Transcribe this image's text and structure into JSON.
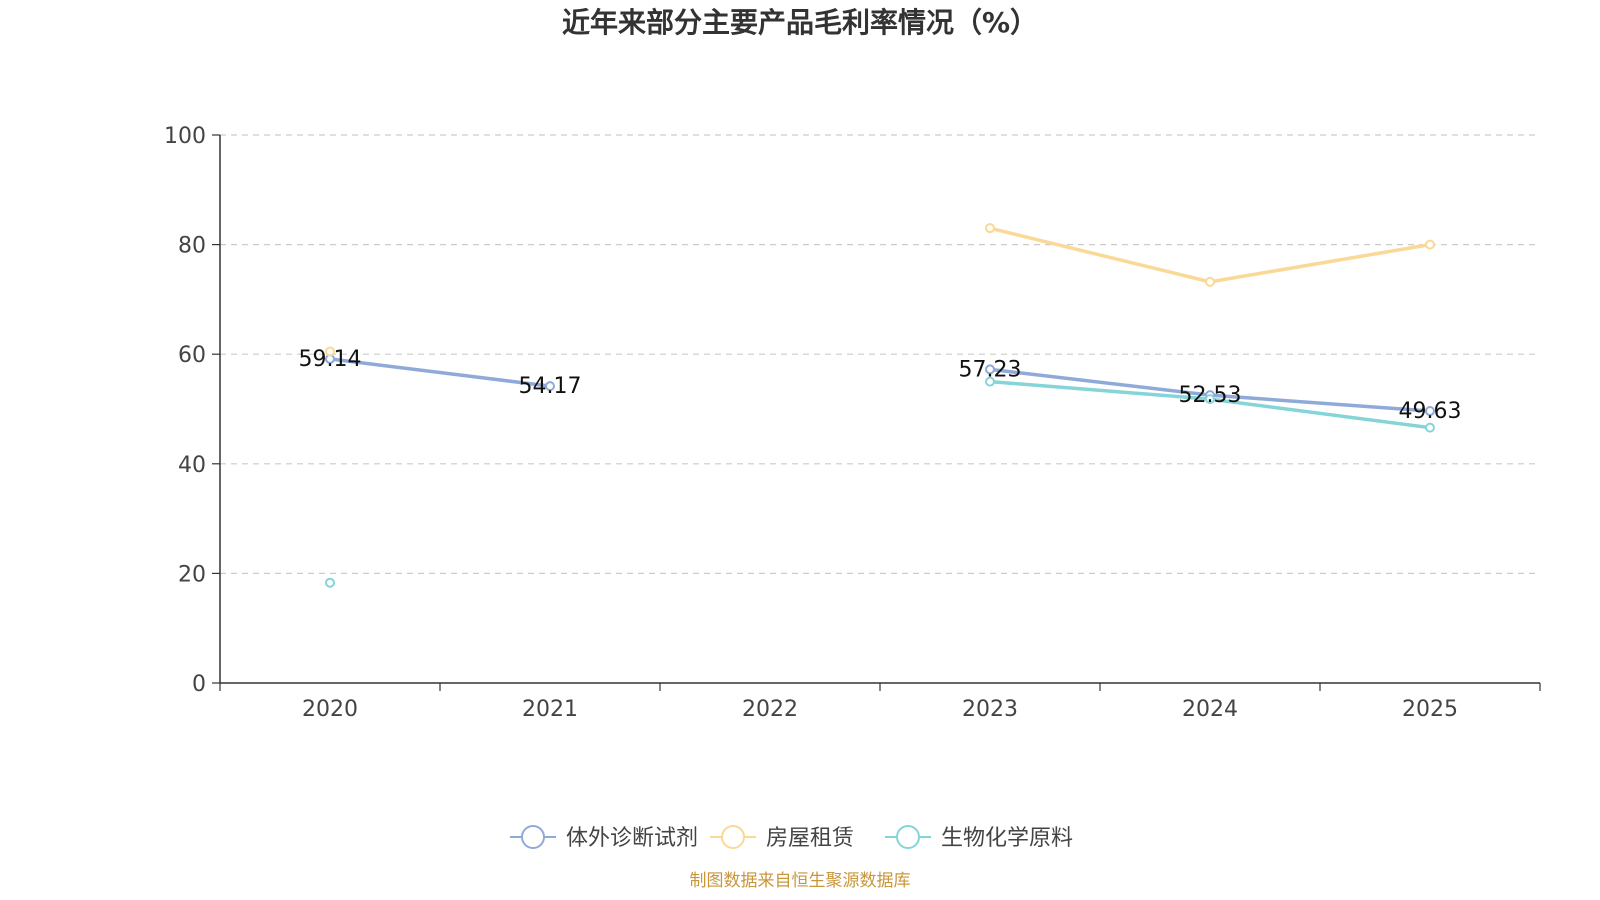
{
  "chart_data": {
    "type": "line",
    "title": "近年来部分主要产品毛利率情况（%）",
    "xlabel": "",
    "ylabel": "",
    "categories": [
      "2020",
      "2021",
      "2022",
      "2023",
      "2024",
      "2025"
    ],
    "ylim": [
      0,
      100
    ],
    "yticks": [
      0,
      20,
      40,
      60,
      80,
      100
    ],
    "grid": true,
    "legend_position": "bottom",
    "series": [
      {
        "name": "体外诊断试剂",
        "color": "#8fa9d8",
        "values": [
          59.14,
          54.17,
          null,
          57.23,
          52.53,
          49.63
        ],
        "labels": [
          "59.14",
          "54.17",
          "",
          "57.23",
          "52.53",
          "49.63"
        ]
      },
      {
        "name": "房屋租赁",
        "color": "#fad896",
        "values": [
          60.5,
          null,
          null,
          83.0,
          73.2,
          80.0
        ],
        "labels": [
          "",
          "",
          "",
          "",
          "",
          ""
        ]
      },
      {
        "name": "生物化学原料",
        "color": "#84d4d8",
        "values": [
          18.3,
          null,
          null,
          55.0,
          51.8,
          46.6
        ],
        "labels": [
          "",
          "",
          "",
          "",
          "",
          ""
        ]
      }
    ],
    "source": "制图数据来自恒生聚源数据库"
  }
}
